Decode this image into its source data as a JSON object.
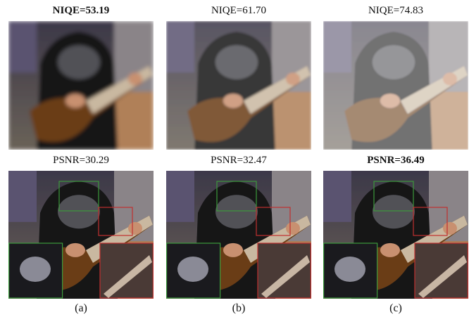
{
  "columns": [
    {
      "niqe": "NIQE=53.19",
      "niqe_bold": true,
      "psnr": "PSNR=30.29",
      "psnr_bold": false,
      "caption": "(a)"
    },
    {
      "niqe": "NIQE=61.70",
      "niqe_bold": false,
      "psnr": "PSNR=32.47",
      "psnr_bold": false,
      "caption": "(b)"
    },
    {
      "niqe": "NIQE=74.83",
      "niqe_bold": false,
      "psnr": "PSNR=36.49",
      "psnr_bold": true,
      "caption": "(c)"
    }
  ]
}
